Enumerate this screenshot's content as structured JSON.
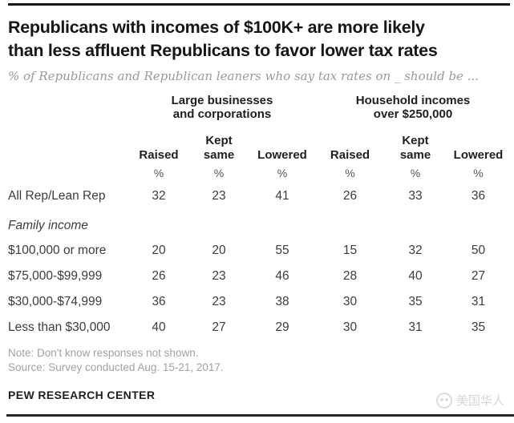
{
  "colors": {
    "title_text": "#161616",
    "subtitle_gray": "#9a9a9a",
    "body_text": "#3c3c3c",
    "note_gray": "#a2a2a2",
    "watermark_gray": "#d6d6d6",
    "rule_black": "#1a1a1a"
  },
  "header": {
    "title_lines": [
      "Republicans with incomes of $100K+ are more likely",
      "than less affluent Republicans to favor lower tax rates"
    ],
    "subtitle": "% of Republicans and Republican leaners who say tax rates on _ should be ..."
  },
  "chart_data": {
    "type": "table",
    "title": "Republicans with incomes of $100K+ are more likely than less affluent Republicans to favor lower tax rates",
    "subtitle": "% of Republicans and Republican leaners who say tax rates on _ should be ...",
    "column_groups": [
      {
        "label": "Large businesses and corporations",
        "columns": [
          "Raised",
          "Kept same",
          "Lowered"
        ]
      },
      {
        "label": "Household incomes over $250,000",
        "columns": [
          "Raised",
          "Kept same",
          "Lowered"
        ]
      }
    ],
    "unit_row": [
      "%",
      "%",
      "%",
      "%",
      "%",
      "%"
    ],
    "section_header": "Family income",
    "rows": [
      {
        "label": "All Rep/Lean Rep",
        "values": [
          32,
          23,
          41,
          26,
          33,
          36
        ]
      },
      {
        "label": "$100,000 or more",
        "values": [
          20,
          20,
          55,
          15,
          32,
          50
        ]
      },
      {
        "label": "$75,000-$99,999",
        "values": [
          26,
          23,
          46,
          28,
          40,
          27
        ]
      },
      {
        "label": "$30,000-$74,999",
        "values": [
          36,
          23,
          38,
          30,
          35,
          31
        ]
      },
      {
        "label": "Less than $30,000",
        "values": [
          40,
          27,
          29,
          30,
          31,
          35
        ]
      }
    ]
  },
  "footer": {
    "note": "Note: Don't know responses not shown.",
    "source": "Source: Survey conducted Aug. 15-21, 2017.",
    "branding": "PEW RESEARCH CENTER",
    "watermark_text": "美国华人"
  }
}
